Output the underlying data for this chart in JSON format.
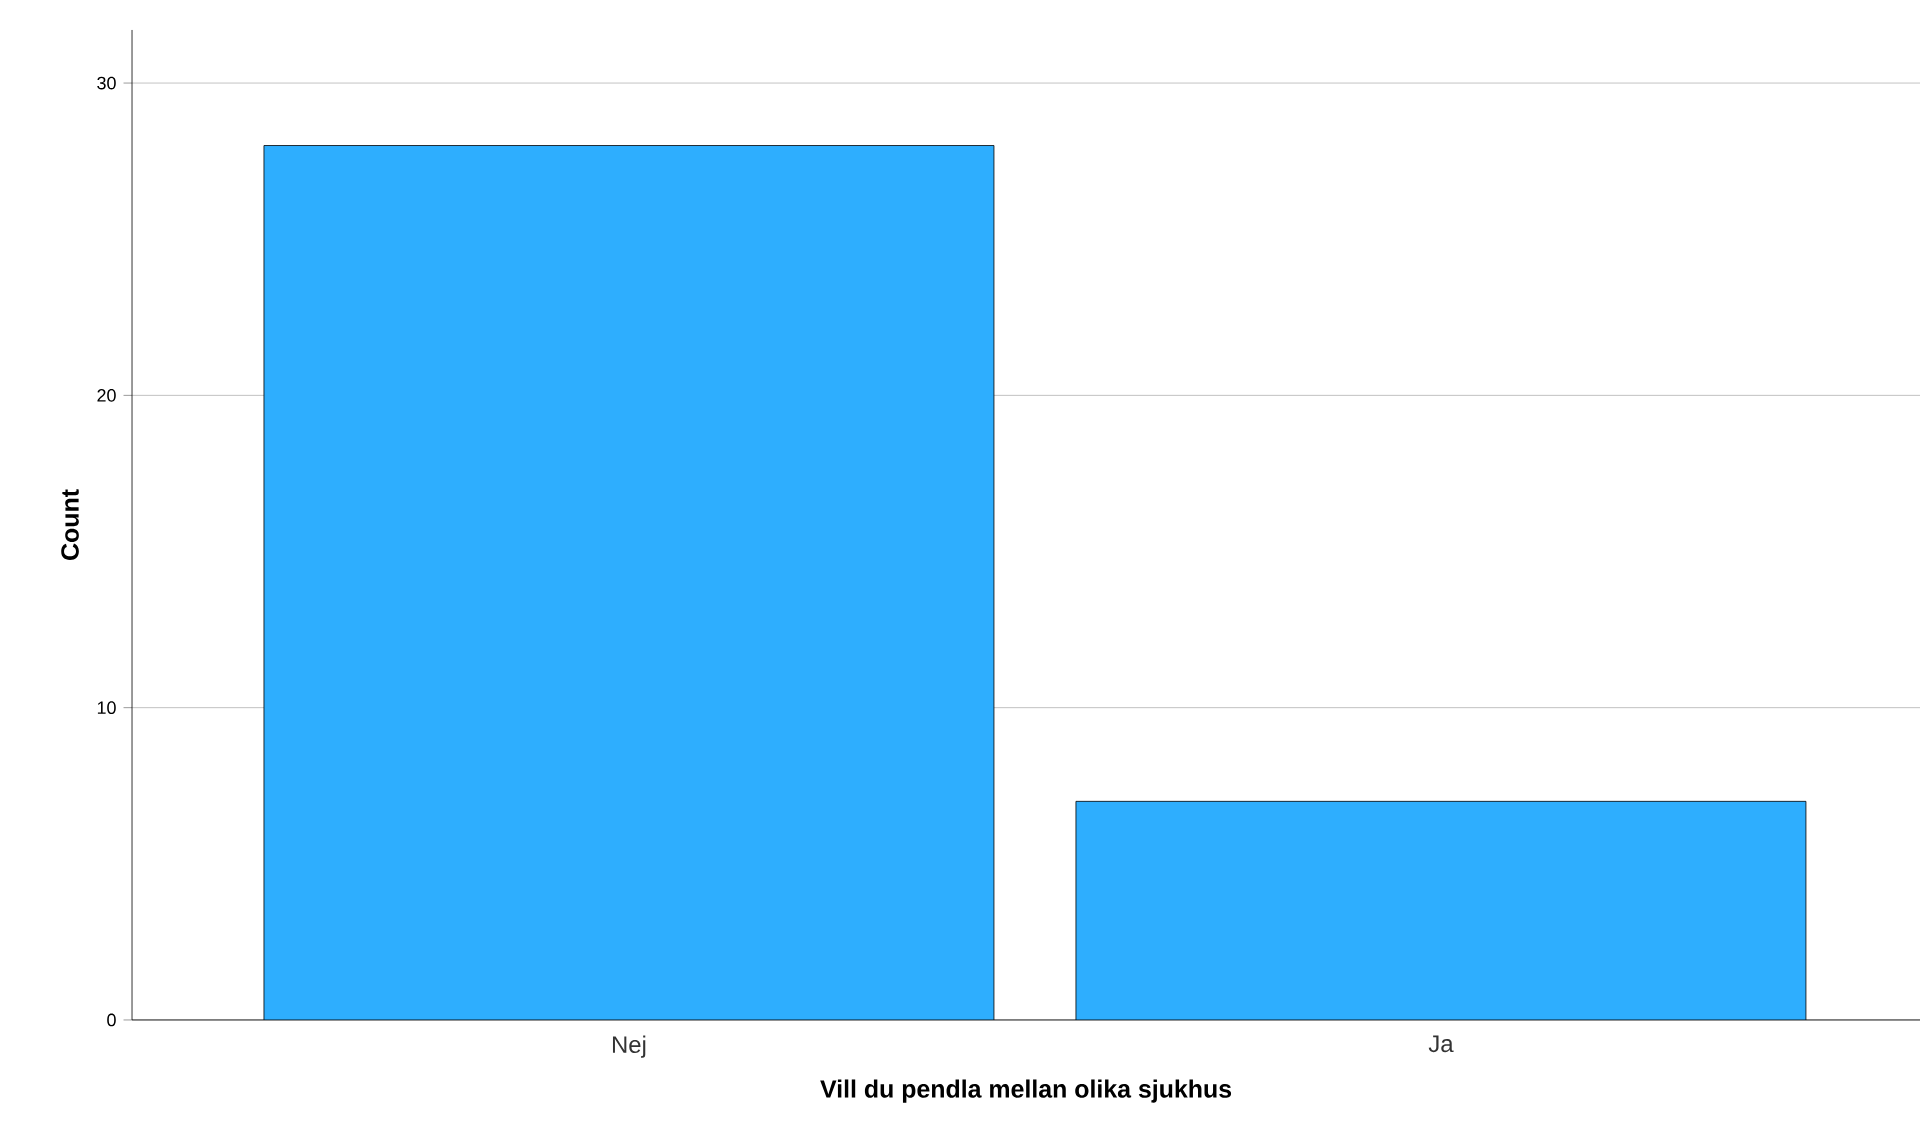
{
  "chart_data": {
    "type": "bar",
    "xlabel": "Vill du pendla mellan olika sjukhus",
    "ylabel": "Count",
    "categories": [
      "Nej",
      "Ja"
    ],
    "values": [
      28,
      7
    ],
    "color": "#2eaefe",
    "ylim": [
      0,
      31.7
    ],
    "yticks": [
      0,
      10,
      20,
      30
    ],
    "grid": "y"
  }
}
